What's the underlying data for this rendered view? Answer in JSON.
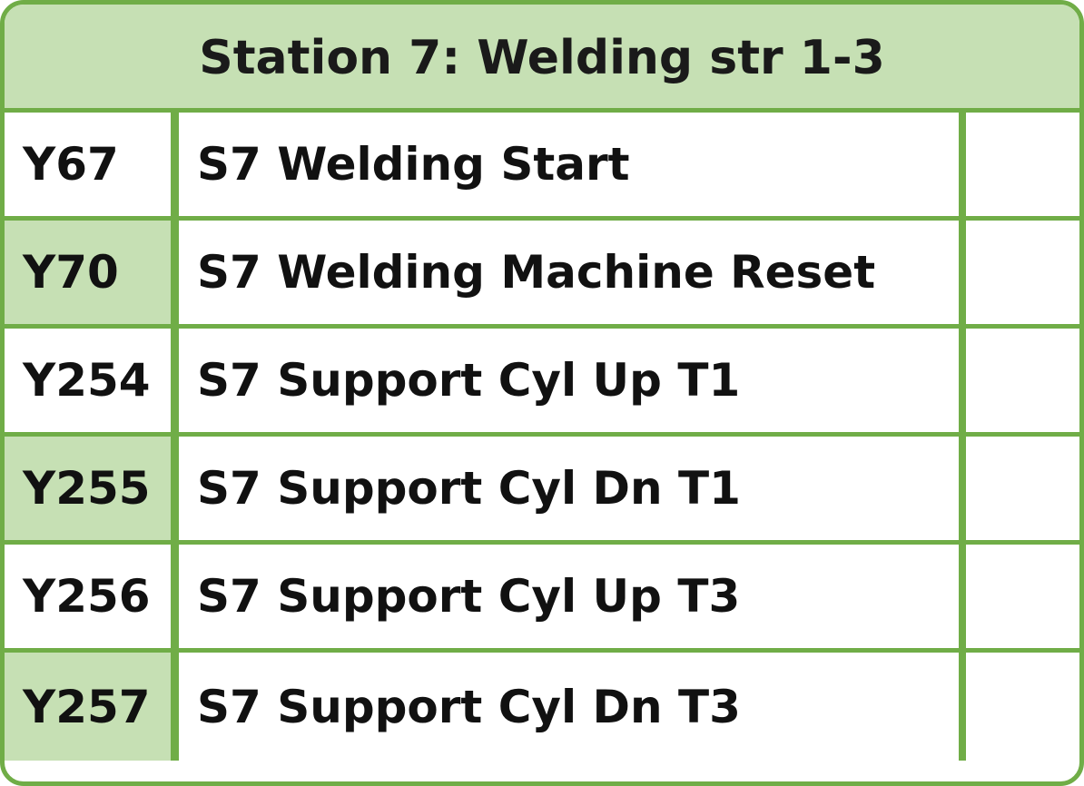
{
  "header": {
    "title": "Station 7: Welding str 1-3"
  },
  "colors": {
    "border": "#70ad47",
    "header_fill": "#c6e0b4",
    "shaded_cell_fill": "#c6e0b4",
    "text": "#111111"
  },
  "rows": [
    {
      "address": "Y67",
      "description": "S7 Welding Start",
      "extra": "",
      "shaded": false
    },
    {
      "address": "Y70",
      "description": "S7 Welding Machine Reset",
      "extra": "",
      "shaded": true
    },
    {
      "address": "Y254",
      "description": "S7 Support Cyl Up T1",
      "extra": "",
      "shaded": false
    },
    {
      "address": "Y255",
      "description": "S7 Support Cyl Dn T1",
      "extra": "",
      "shaded": true
    },
    {
      "address": "Y256",
      "description": "S7 Support Cyl Up T3",
      "extra": "",
      "shaded": false
    },
    {
      "address": "Y257",
      "description": "S7 Support Cyl Dn T3",
      "extra": "",
      "shaded": true
    }
  ]
}
